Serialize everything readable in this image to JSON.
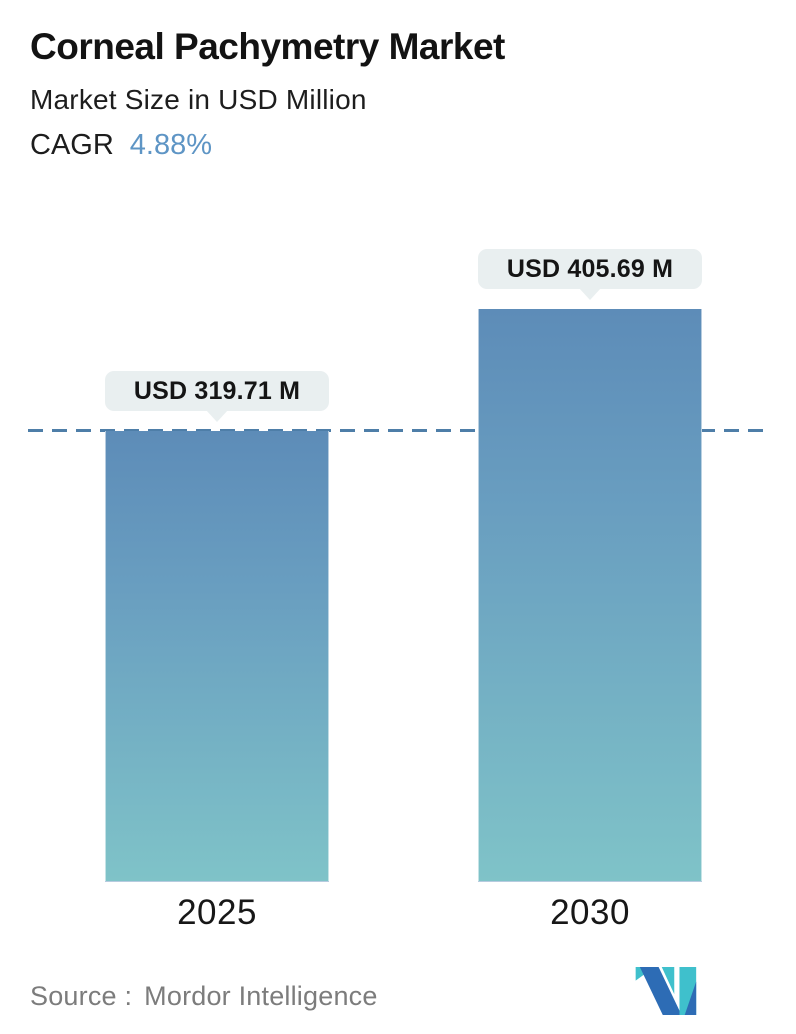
{
  "header": {
    "title": "Corneal Pachymetry Market",
    "subtitle": "Market Size in USD Million",
    "cagr_label": "CAGR",
    "cagr_value": "4.88%"
  },
  "chart_data": {
    "type": "bar",
    "categories": [
      "2025",
      "2030"
    ],
    "values": [
      319.71,
      405.69
    ],
    "value_labels": [
      "USD 319.71 M",
      "USD 405.69 M"
    ],
    "title": "Corneal Pachymetry Market",
    "subtitle": "Market Size in USD Million",
    "cagr": "4.88%",
    "ylabel": "USD Million",
    "ylim": [
      0,
      420
    ],
    "baseline_value": 319.71,
    "baseline_style": "dashed",
    "grid": false,
    "legend": "none",
    "bar_gradient_top": "#5d8cb8",
    "bar_gradient_bottom": "#7fc3c8"
  },
  "bars": [
    {
      "category": "2025",
      "label": "USD 319.71 M",
      "value": 319.71
    },
    {
      "category": "2030",
      "label": "USD 405.69 M",
      "value": 405.69
    }
  ],
  "footer": {
    "source_label": "Source :",
    "source_name": "Mordor Intelligence"
  },
  "colors": {
    "accent_blue": "#5e95c5",
    "dashed_line": "#4e7ea8",
    "tooltip_bg": "#e9eff0",
    "text_dark": "#151515",
    "source_gray": "#7c7c7c",
    "logo_teal": "#3fc0cc",
    "logo_blue": "#2d6cb5"
  }
}
